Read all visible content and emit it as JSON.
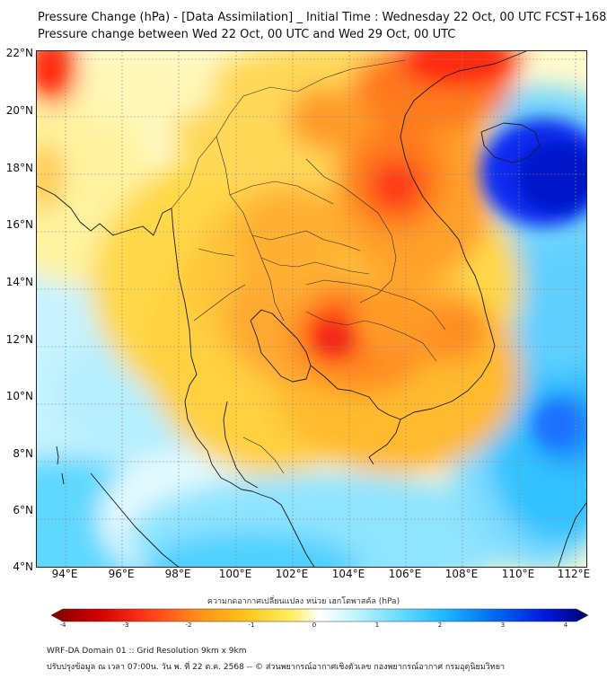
{
  "title_line1": "Pressure Change (hPa) - [Data Assimilation] _ Initial Time : Wednesday 22 Oct, 00 UTC FCST+168",
  "title_line2": "Pressure change between Wed 22 Oct, 00 UTC and Wed 29 Oct, 00 UTC",
  "lat_labels": [
    "22°N",
    "20°N",
    "18°N",
    "16°N",
    "14°N",
    "12°N",
    "10°N",
    "8°N",
    "6°N",
    "4°N"
  ],
  "lon_labels": [
    "94°E",
    "96°E",
    "98°E",
    "100°E",
    "102°E",
    "104°E",
    "106°E",
    "108°E",
    "110°E",
    "112°E"
  ],
  "map_extent": {
    "lat_range": [
      4,
      22
    ],
    "lon_range": [
      93,
      112.5
    ]
  },
  "colorbar": {
    "title": "ความกดอากาศเปลี่ยนแปลง หน่วย เฮกโตพาสคัล (hPa)",
    "range": [
      -4,
      4
    ],
    "ticks": [
      "-4",
      "-3",
      "-2",
      "-1",
      "0",
      "1",
      "2",
      "3",
      "4"
    ],
    "colors": [
      "#7a0000",
      "#d40000",
      "#ff3a1a",
      "#ff8c1a",
      "#ffc21a",
      "#fff066",
      "#ffffff",
      "#9ff0ff",
      "#33ccff",
      "#0077ff",
      "#0018dd",
      "#00006e"
    ]
  },
  "features": {
    "positive_center": "South China Sea east of Vietnam",
    "negative_center": "Cambodia / eastern Thailand"
  },
  "footer_line1": "WRF-DA Domain 01 :: Grid Resolution 9km x 9km",
  "footer_line2": "ปรับปรุงข้อมูล ณ เวลา 07:00น. วัน พ. ที่ 22 ต.ค. 2568 -- © ส่วนพยากรณ์อากาศเชิงตัวเลข กองพยากรณ์อากาศ กรมอุตุนิยมวิทยา"
}
